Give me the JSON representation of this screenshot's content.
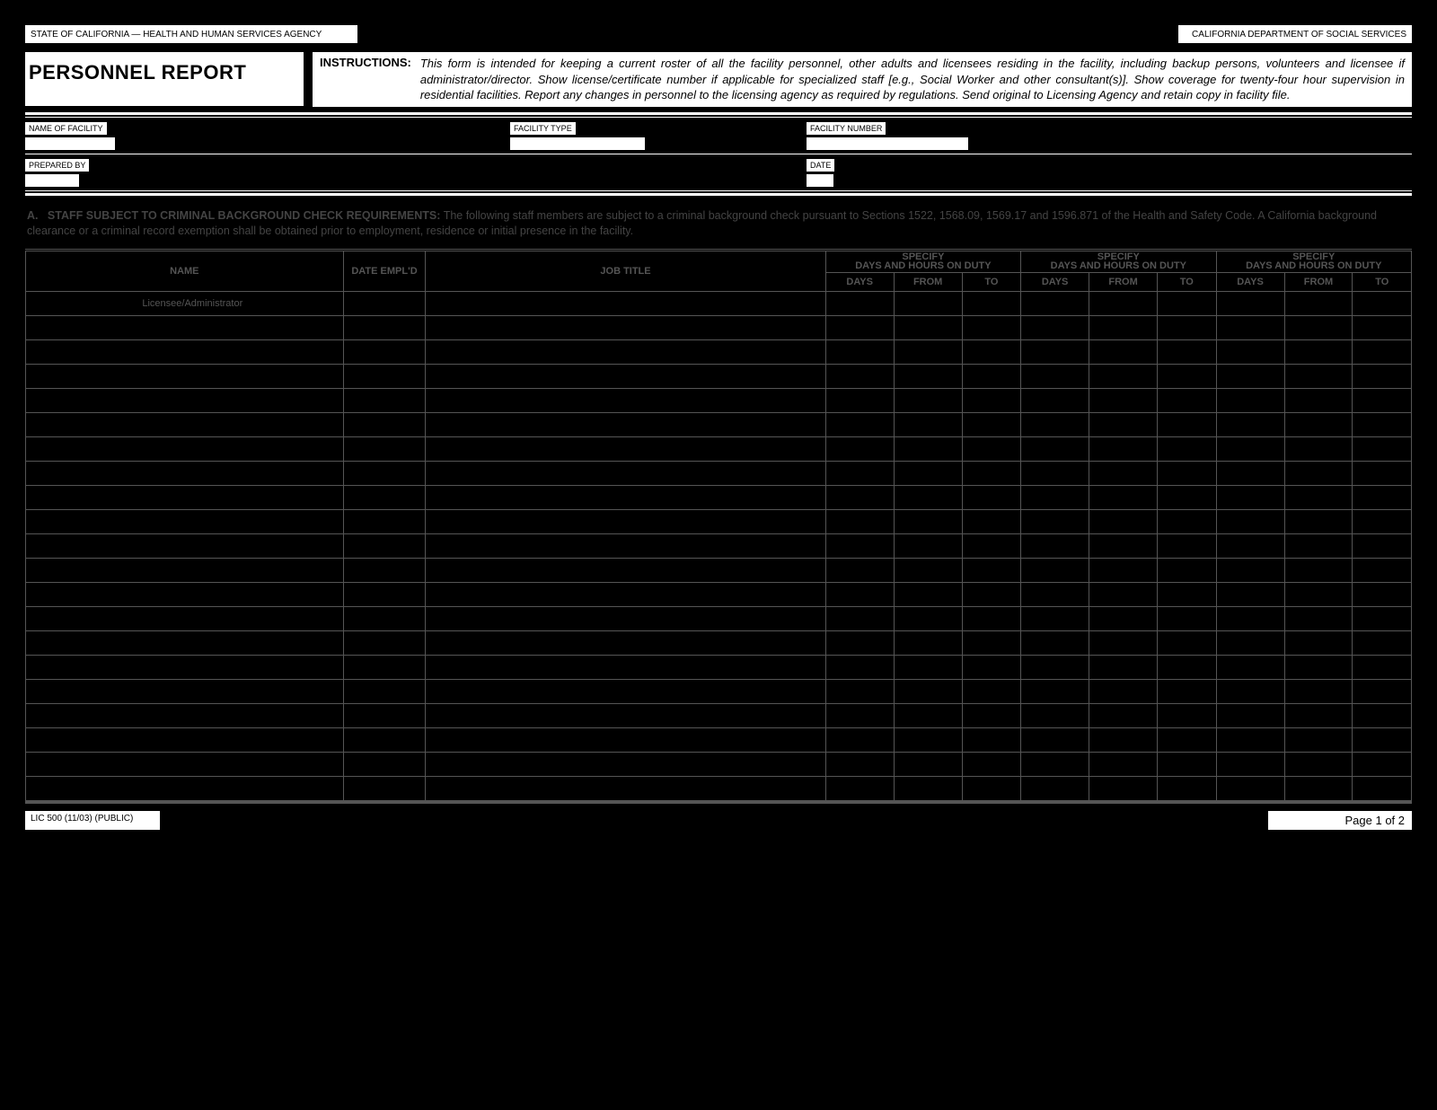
{
  "header": {
    "agency_left": "STATE OF CALIFORNIA — HEALTH AND HUMAN SERVICES AGENCY",
    "agency_right": "CALIFORNIA DEPARTMENT OF SOCIAL SERVICES",
    "title": "PERSONNEL REPORT",
    "instructions_label": "INSTRUCTIONS:",
    "instructions_text": "This form is intended for keeping a current roster of all the facility personnel, other adults and licensees residing in the facility, including backup persons, volunteers and licensee if administrator/director. Show license/certificate number if applicable for specialized staff [e.g., Social Worker and other consultant(s)]. Show coverage for twenty-four hour supervision in residential facilities. Report any changes in personnel to the licensing agency as required by regulations. Send original to Licensing Agency and retain copy in facility file."
  },
  "fields": {
    "name_of_facility": "NAME OF FACILITY",
    "facility_type": "FACILITY TYPE",
    "facility_number": "FACILITY NUMBER",
    "prepared_by": "PREPARED BY",
    "date": "DATE"
  },
  "section_a": {
    "prefix": "A.",
    "heading": "STAFF SUBJECT TO CRIMINAL BACKGROUND CHECK REQUIREMENTS:",
    "text": "The following staff members are subject to a criminal background check pursuant to Sections 1522, 1568.09, 1569.17 and 1596.871 of the Health and Safety Code. A California background clearance or a criminal record exemption shall be obtained prior to employment, residence or initial presence in the facility."
  },
  "table": {
    "col_name": "NAME",
    "col_date": "DATE EMPL'D",
    "col_job": "JOB TITLE",
    "col_specify": "SPECIFY",
    "col_dayshours": "DAYS AND HOURS ON DUTY",
    "sub_days": "DAYS",
    "sub_from": "FROM",
    "sub_to": "TO",
    "first_row_label": "Licensee/Administrator",
    "blank_rows": 20
  },
  "footer": {
    "form_id": "LIC 500 (11/03) (PUBLIC)",
    "page": "Page 1 of 2"
  }
}
